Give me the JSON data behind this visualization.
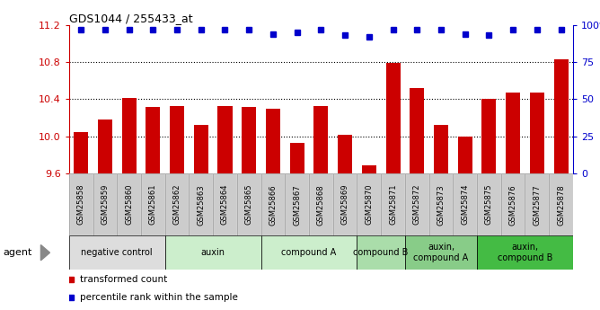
{
  "title": "GDS1044 / 255433_at",
  "samples": [
    "GSM25858",
    "GSM25859",
    "GSM25860",
    "GSM25861",
    "GSM25862",
    "GSM25863",
    "GSM25864",
    "GSM25865",
    "GSM25866",
    "GSM25867",
    "GSM25868",
    "GSM25869",
    "GSM25870",
    "GSM25871",
    "GSM25872",
    "GSM25873",
    "GSM25874",
    "GSM25875",
    "GSM25876",
    "GSM25877",
    "GSM25878"
  ],
  "bar_values": [
    10.05,
    10.18,
    10.41,
    10.32,
    10.33,
    10.12,
    10.33,
    10.32,
    10.3,
    9.93,
    10.33,
    10.02,
    9.69,
    10.79,
    10.52,
    10.12,
    10.0,
    10.4,
    10.47,
    10.47,
    10.83
  ],
  "percentile_values": [
    97,
    97,
    97,
    97,
    97,
    97,
    97,
    97,
    94,
    95,
    97,
    93,
    92,
    97,
    97,
    97,
    94,
    93,
    97,
    97,
    97
  ],
  "bar_color": "#cc0000",
  "dot_color": "#0000cc",
  "ylim_left": [
    9.6,
    11.2
  ],
  "ylim_right": [
    0,
    100
  ],
  "yticks_left": [
    9.6,
    10.0,
    10.4,
    10.8,
    11.2
  ],
  "yticks_right": [
    0,
    25,
    50,
    75,
    100
  ],
  "ytick_labels_right": [
    "0",
    "25",
    "50",
    "75",
    "100%"
  ],
  "grid_values": [
    10.0,
    10.4,
    10.8
  ],
  "agent_groups": [
    {
      "label": "negative control",
      "start": 0,
      "end": 3,
      "color": "#dddddd"
    },
    {
      "label": "auxin",
      "start": 4,
      "end": 7,
      "color": "#cceecc"
    },
    {
      "label": "compound A",
      "start": 8,
      "end": 11,
      "color": "#cceecc"
    },
    {
      "label": "compound B",
      "start": 12,
      "end": 13,
      "color": "#aaddaa"
    },
    {
      "label": "auxin,\ncompound A",
      "start": 14,
      "end": 16,
      "color": "#88cc88"
    },
    {
      "label": "auxin,\ncompound B",
      "start": 17,
      "end": 20,
      "color": "#44bb44"
    }
  ],
  "xtick_bg_color": "#cccccc",
  "legend_items": [
    {
      "label": "transformed count",
      "color": "#cc0000"
    },
    {
      "label": "percentile rank within the sample",
      "color": "#0000cc"
    }
  ],
  "agent_label": "agent",
  "background_color": "#ffffff"
}
